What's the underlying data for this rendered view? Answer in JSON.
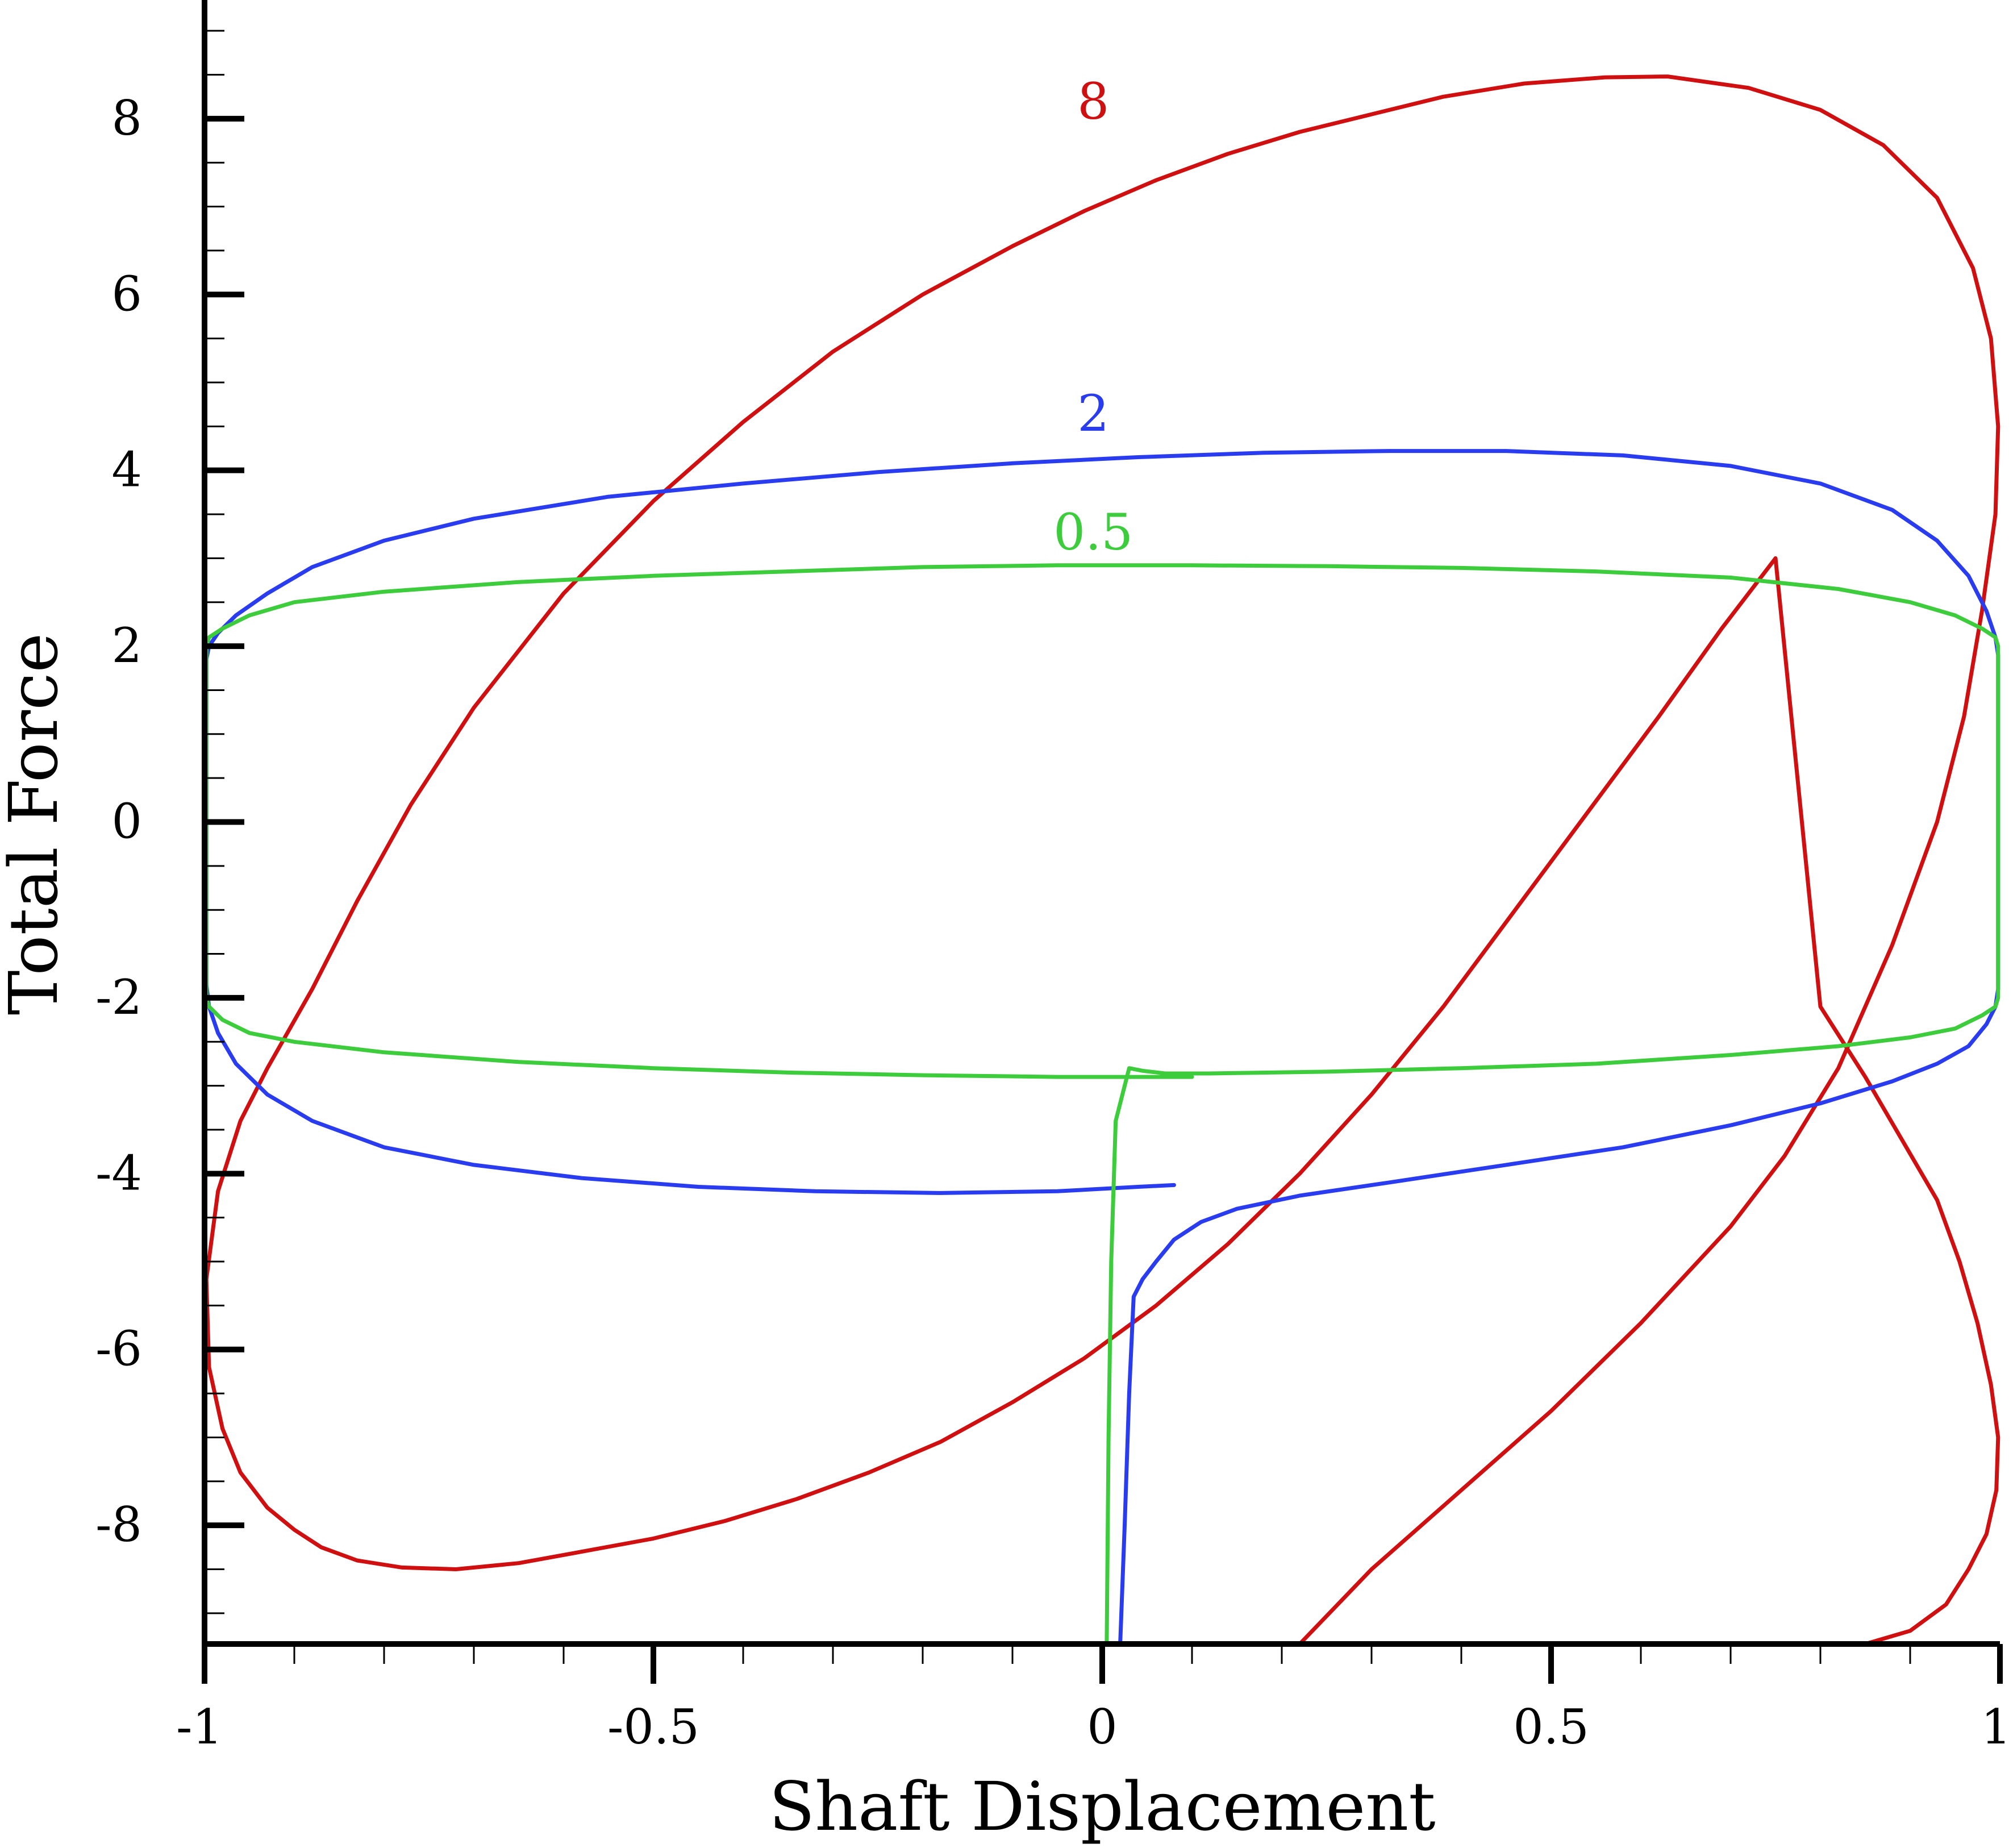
{
  "chart_data": {
    "type": "line",
    "title": "",
    "xlabel": "Shaft Displacement",
    "ylabel": "Total Force",
    "xlim": [
      -1,
      1
    ],
    "ylim": [
      -9.35,
      9.35
    ],
    "grid": false,
    "legend": "none",
    "x_ticks": [
      -1,
      -0.5,
      0,
      0.5,
      1
    ],
    "x_tick_labels": [
      "-1",
      "-0.5",
      "0",
      "0.5",
      "1"
    ],
    "y_ticks": [
      -8,
      -6,
      -4,
      -2,
      0,
      2,
      4,
      6,
      8
    ],
    "y_tick_labels": [
      "-8",
      "-6",
      "-4",
      "-2",
      "0",
      "2",
      "4",
      "6",
      "8"
    ],
    "annotations": [
      {
        "text": "8",
        "x": -0.01,
        "y": 8.0,
        "color": "#d01010"
      },
      {
        "text": "2",
        "x": -0.01,
        "y": 4.45,
        "color": "#2a3cf0"
      },
      {
        "text": "0.5",
        "x": -0.01,
        "y": 3.1,
        "color": "#3ccc3c"
      }
    ],
    "series": [
      {
        "color": "#d01010",
        "x": [
          0.22,
          0.3,
          0.4,
          0.5,
          0.6,
          0.7,
          0.76,
          0.82,
          0.88,
          0.93,
          0.96,
          0.98,
          0.995,
          0.998,
          0.99,
          0.97,
          0.93,
          0.87,
          0.8,
          0.72,
          0.63,
          0.56,
          0.47,
          0.38,
          0.3,
          0.22,
          0.14,
          0.06,
          -0.02,
          -0.1,
          -0.2,
          -0.3,
          -0.4,
          -0.5,
          -0.6,
          -0.7,
          -0.77,
          -0.83,
          -0.88,
          -0.93,
          -0.96,
          -0.985,
          -0.998,
          -0.995,
          -0.98,
          -0.96,
          -0.93,
          -0.9,
          -0.87,
          -0.83,
          -0.78,
          -0.72,
          -0.65,
          -0.58,
          -0.5,
          -0.42,
          -0.34,
          -0.26,
          -0.18,
          -0.1,
          -0.02,
          0.06,
          0.14,
          0.22,
          0.3,
          0.38,
          0.46,
          0.54,
          0.62,
          0.69,
          0.75,
          0.8,
          0.85,
          0.89,
          0.93,
          0.955,
          0.975,
          0.99,
          0.998,
          0.996,
          0.985,
          0.965,
          0.94,
          0.9,
          0.85,
          0.78
        ],
        "y": [
          -9.35,
          -8.5,
          -7.6,
          -6.7,
          -5.7,
          -4.6,
          -3.8,
          -2.8,
          -1.4,
          0.0,
          1.2,
          2.4,
          3.5,
          4.5,
          5.5,
          6.3,
          7.1,
          7.7,
          8.1,
          8.35,
          8.48,
          8.47,
          8.4,
          8.25,
          8.05,
          7.85,
          7.6,
          7.3,
          6.95,
          6.55,
          6.0,
          5.35,
          4.55,
          3.65,
          2.6,
          1.3,
          0.2,
          -0.9,
          -1.9,
          -2.8,
          -3.4,
          -4.2,
          -5.2,
          -6.2,
          -6.9,
          -7.4,
          -7.8,
          -8.05,
          -8.25,
          -8.4,
          -8.48,
          -8.5,
          -8.43,
          -8.3,
          -8.15,
          -7.95,
          -7.7,
          -7.4,
          -7.05,
          -6.6,
          -6.1,
          -5.5,
          -4.8,
          -4.0,
          -3.1,
          -2.1,
          -1.0,
          0.1,
          1.2,
          2.2,
          3.0,
          -2.1,
          -2.9,
          -3.6,
          -4.3,
          -5.0,
          -5.7,
          -6.4,
          -7.0,
          -7.6,
          -8.1,
          -8.5,
          -8.9,
          -9.2,
          -9.35,
          -9.35
        ]
      },
      {
        "color": "#2a3cf0",
        "x": [
          0.02,
          0.025,
          0.03,
          0.035,
          0.045,
          0.06,
          0.08,
          0.11,
          0.15,
          0.22,
          0.32,
          0.45,
          0.58,
          0.7,
          0.8,
          0.88,
          0.93,
          0.965,
          0.985,
          0.995,
          0.998,
          0.998,
          0.998,
          0.995,
          0.985,
          0.965,
          0.93,
          0.88,
          0.8,
          0.7,
          0.58,
          0.45,
          0.32,
          0.18,
          0.04,
          -0.1,
          -0.25,
          -0.4,
          -0.55,
          -0.7,
          -0.8,
          -0.88,
          -0.93,
          -0.965,
          -0.985,
          -0.995,
          -0.998,
          -0.998,
          -0.998,
          -0.995,
          -0.985,
          -0.965,
          -0.93,
          -0.88,
          -0.8,
          -0.7,
          -0.58,
          -0.45,
          -0.32,
          -0.18,
          -0.05,
          0.04,
          0.08
        ],
        "y": [
          -9.35,
          -8.0,
          -6.5,
          -5.4,
          -5.2,
          -5.0,
          -4.75,
          -4.55,
          -4.4,
          -4.25,
          -4.1,
          -3.9,
          -3.7,
          -3.45,
          -3.2,
          -2.95,
          -2.75,
          -2.55,
          -2.3,
          -2.1,
          -1.9,
          0.0,
          1.9,
          2.1,
          2.4,
          2.8,
          3.2,
          3.55,
          3.85,
          4.05,
          4.17,
          4.22,
          4.22,
          4.2,
          4.15,
          4.08,
          3.98,
          3.85,
          3.7,
          3.45,
          3.2,
          2.9,
          2.6,
          2.35,
          2.15,
          2.0,
          1.85,
          0.0,
          -1.85,
          -2.1,
          -2.4,
          -2.75,
          -3.1,
          -3.4,
          -3.7,
          -3.9,
          -4.05,
          -4.15,
          -4.2,
          -4.22,
          -4.2,
          -4.15,
          -4.13
        ]
      },
      {
        "color": "#3ccc3c",
        "x": [
          0.005,
          0.007,
          0.01,
          0.015,
          0.03,
          0.045,
          0.07,
          0.12,
          0.25,
          0.4,
          0.55,
          0.7,
          0.82,
          0.9,
          0.95,
          0.98,
          0.995,
          0.998,
          0.998,
          0.995,
          0.98,
          0.95,
          0.9,
          0.82,
          0.7,
          0.55,
          0.4,
          0.25,
          0.1,
          -0.05,
          -0.2,
          -0.35,
          -0.5,
          -0.65,
          -0.8,
          -0.9,
          -0.95,
          -0.98,
          -0.995,
          -0.998,
          -0.998,
          -0.995,
          -0.98,
          -0.95,
          -0.9,
          -0.8,
          -0.65,
          -0.5,
          -0.35,
          -0.2,
          -0.05,
          0.1
        ],
        "y": [
          -9.35,
          -7.0,
          -5.0,
          -3.4,
          -2.8,
          -2.83,
          -2.86,
          -2.86,
          -2.84,
          -2.8,
          -2.75,
          -2.65,
          -2.55,
          -2.45,
          -2.35,
          -2.2,
          -2.1,
          -2.0,
          2.0,
          2.1,
          2.2,
          2.35,
          2.5,
          2.65,
          2.78,
          2.85,
          2.89,
          2.91,
          2.92,
          2.92,
          2.9,
          2.85,
          2.8,
          2.73,
          2.62,
          2.5,
          2.35,
          2.2,
          2.1,
          2.0,
          -2.0,
          -2.1,
          -2.25,
          -2.4,
          -2.5,
          -2.62,
          -2.73,
          -2.8,
          -2.85,
          -2.88,
          -2.9,
          -2.9
        ]
      }
    ]
  }
}
